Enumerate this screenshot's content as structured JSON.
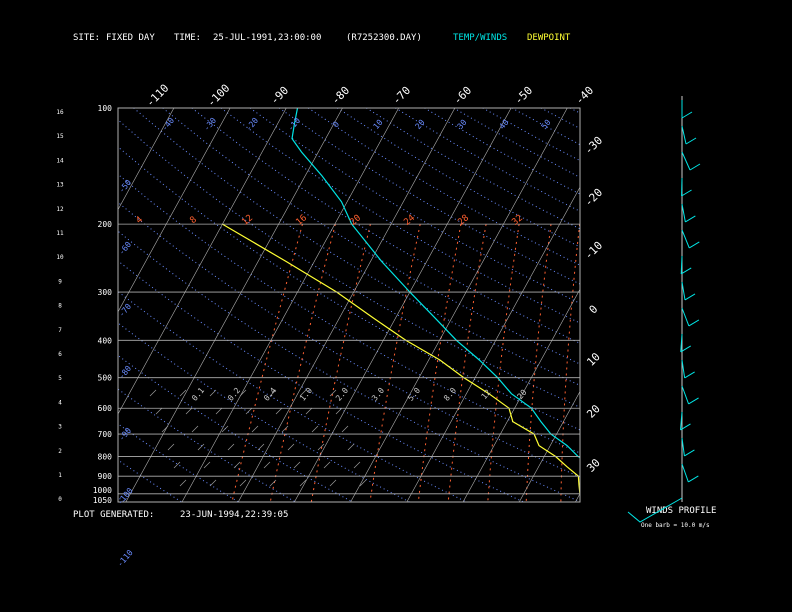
{
  "header": {
    "site_label": "SITE:",
    "site_value": "FIXED DAY",
    "time_label": "TIME:",
    "time_value": "25-JUL-1991,23:00:00",
    "file_value": "(R7252300.DAY)",
    "legend_temp": "TEMP/WINDS",
    "legend_dew": "DEWPOINT"
  },
  "footer": {
    "generated_label": "PLOT GENERATED:",
    "generated_value": "23-JUN-1994,22:39:05",
    "winds_title": "WINDS PROFILE",
    "winds_note": "One barb = 10.0 m/s"
  },
  "colors": {
    "temp": "#00e5e5",
    "dew": "#ffff33",
    "grid": "#b0b0b0",
    "dry_adiabat": "#6a8cff",
    "mixing_ratio": "#ff6030"
  },
  "chart_data": {
    "type": "line",
    "title": "",
    "diagram": "skew-T log-P",
    "y_pressure_ticks": [
      "100",
      "200",
      "300",
      "400",
      "500",
      "600",
      "700",
      "800",
      "900",
      "1000",
      "1050"
    ],
    "y_height_km_ticks": [
      "16",
      "15",
      "14",
      "13",
      "12",
      "11",
      "10",
      "9",
      "8",
      "7",
      "6",
      "5",
      "4",
      "3",
      "2",
      "1",
      "0"
    ],
    "isotherm_labels_top": [
      "-110",
      "-100",
      "-90",
      "-80",
      "-70",
      "-60",
      "-50",
      "-40"
    ],
    "isotherm_labels_right": [
      "-30",
      "-20",
      "-10",
      "0",
      "10",
      "20",
      "30"
    ],
    "dry_adiabat_labels": [
      "50",
      "40",
      "30",
      "20",
      "10",
      "0",
      "-10",
      "-20",
      "-30",
      "-40",
      "-50",
      "-60",
      "-70",
      "-80",
      "-90",
      "-100",
      "-110"
    ],
    "mixing_ratio_labels": [
      "4",
      "8",
      "12",
      "16",
      "20",
      "24",
      "28",
      "32"
    ],
    "mixing_ratio_labels_low": [
      "0.1",
      "0.2",
      "0.4",
      "1.0",
      "2.0",
      "3.0",
      "5.0",
      "8.0",
      "12",
      "20"
    ],
    "series": [
      {
        "name": "TEMP/WINDS",
        "points": [
          [
            1050,
            26
          ],
          [
            1000,
            25
          ],
          [
            950,
            24
          ],
          [
            900,
            23
          ],
          [
            850,
            20
          ],
          [
            800,
            16
          ],
          [
            750,
            13
          ],
          [
            700,
            9
          ],
          [
            650,
            6
          ],
          [
            600,
            3
          ],
          [
            550,
            -2
          ],
          [
            500,
            -6
          ],
          [
            450,
            -11
          ],
          [
            400,
            -17
          ],
          [
            350,
            -23
          ],
          [
            300,
            -30
          ],
          [
            250,
            -38
          ],
          [
            200,
            -47
          ],
          [
            175,
            -51
          ],
          [
            150,
            -57
          ],
          [
            130,
            -63
          ],
          [
            120,
            -66
          ],
          [
            110,
            -67
          ],
          [
            100,
            -68
          ]
        ]
      },
      {
        "name": "DEWPOINT",
        "points": [
          [
            1050,
            21
          ],
          [
            1000,
            20
          ],
          [
            950,
            19
          ],
          [
            900,
            18
          ],
          [
            850,
            15
          ],
          [
            800,
            12
          ],
          [
            750,
            8
          ],
          [
            700,
            6
          ],
          [
            650,
            1
          ],
          [
            600,
            -1
          ],
          [
            550,
            -6
          ],
          [
            500,
            -12
          ],
          [
            450,
            -18
          ],
          [
            400,
            -26
          ],
          [
            350,
            -34
          ],
          [
            300,
            -43
          ],
          [
            250,
            -55
          ],
          [
            200,
            -70
          ]
        ]
      }
    ],
    "winds_profile": {
      "points": [
        [
          0,
          -6
        ],
        [
          0,
          -3
        ],
        [
          0,
          -10
        ],
        [
          -1,
          -20
        ],
        [
          -2,
          -28
        ],
        [
          -3,
          -38
        ],
        [
          -4,
          -46
        ],
        [
          -6,
          -55
        ],
        [
          -8,
          -64
        ],
        [
          -10,
          -72
        ],
        [
          -12,
          -80
        ],
        [
          -14,
          -88
        ],
        [
          -16,
          -95
        ],
        [
          -18,
          -102
        ],
        [
          -20,
          -108
        ]
      ]
    }
  }
}
